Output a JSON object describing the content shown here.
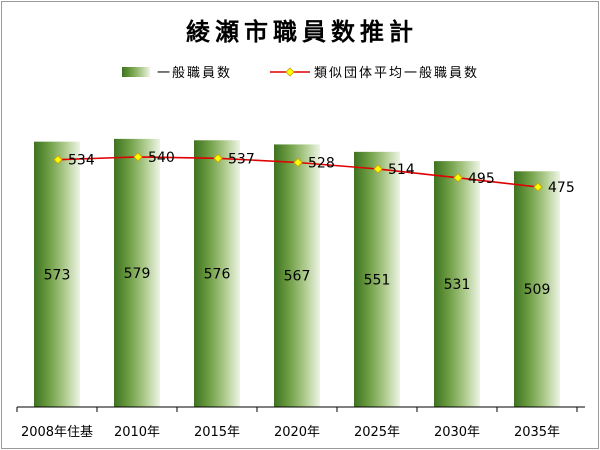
{
  "chart_data": {
    "type": "bar",
    "title": "綾瀬市職員数推計",
    "categories": [
      "2008年住基",
      "2010年",
      "2015年",
      "2020年",
      "2025年",
      "2030年",
      "2035年"
    ],
    "series": [
      {
        "name": "一般職員数",
        "type": "bar",
        "values": [
          573,
          579,
          576,
          567,
          551,
          531,
          509
        ],
        "color": "#4f8a2b"
      },
      {
        "name": "類似団体平均一般職員数",
        "type": "line",
        "values": [
          534,
          540,
          537,
          528,
          514,
          495,
          475
        ],
        "color": "#e00000",
        "marker_color": "#ffff00"
      }
    ],
    "ylim": [
      0,
      650
    ],
    "grid": false,
    "legend": "top",
    "data_labels": true
  }
}
